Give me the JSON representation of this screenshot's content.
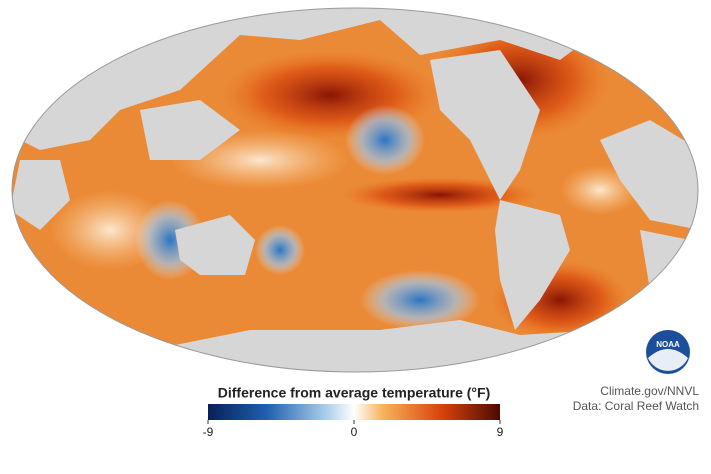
{
  "legend": {
    "title": "Difference from average temperature (°F)",
    "min": -9,
    "max": 9,
    "ticks": [
      -9,
      0,
      9
    ]
  },
  "logo": "NOAA",
  "credits": [
    "Climate.gov/NNVL",
    "Data: Coral Reef Watch"
  ]
}
